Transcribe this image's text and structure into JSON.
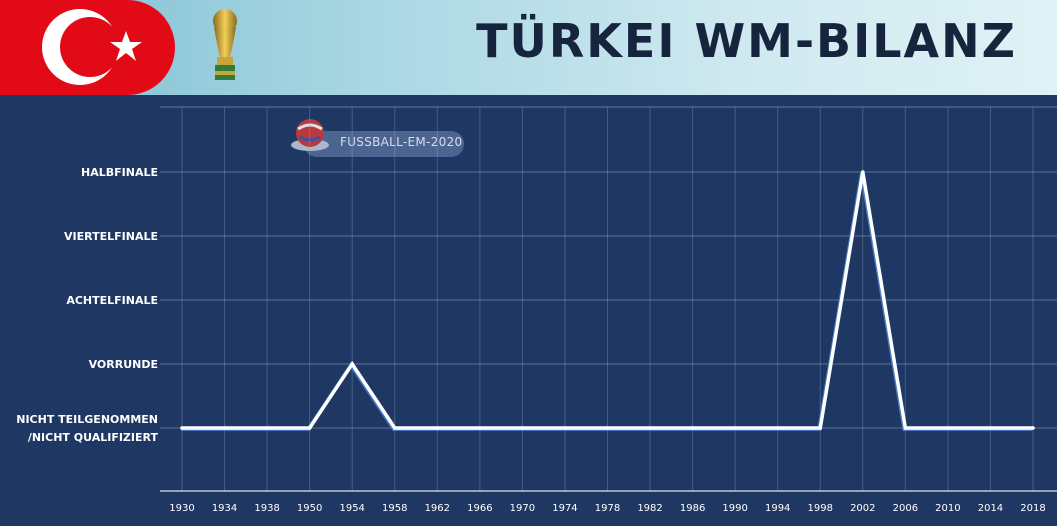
{
  "header": {
    "title": "TÜRKEI WM-BILANZ",
    "flag_colors": {
      "red": "#e30a17",
      "white": "#ffffff"
    },
    "trophy_icon": "world-cup-trophy-icon"
  },
  "watermark": {
    "text": "FUSSBALL-EM-2020",
    "icon": "football-logo-icon"
  },
  "chart_data": {
    "type": "line",
    "title": "TÜRKEI WM-BILANZ",
    "xlabel": "",
    "ylabel": "",
    "categories": [
      "1930",
      "1934",
      "1938",
      "1950",
      "1954",
      "1958",
      "1962",
      "1966",
      "1970",
      "1974",
      "1978",
      "1982",
      "1986",
      "1990",
      "1994",
      "1998",
      "2002",
      "2006",
      "2010",
      "2014",
      "2018"
    ],
    "y_levels": [
      "NICHT TEILGENOMMEN\n/NICHT QUALIFIZIERT",
      "VORRUNDE",
      "ACHTELFINALE",
      "VIERTELFINALE",
      "HALBFINALE"
    ],
    "series": [
      {
        "values": [
          0,
          0,
          0,
          0,
          1,
          0,
          0,
          0,
          0,
          0,
          0,
          0,
          0,
          0,
          0,
          0,
          4,
          0,
          0,
          0,
          0
        ]
      }
    ],
    "ylim": [
      0,
      4
    ],
    "grid": true,
    "legend": "none",
    "colors": {
      "background": "#1f3763",
      "line": "#ffffff",
      "line_shadow": "#4a78c8",
      "grid": "#8fa3c4",
      "text": "#ffffff"
    }
  }
}
